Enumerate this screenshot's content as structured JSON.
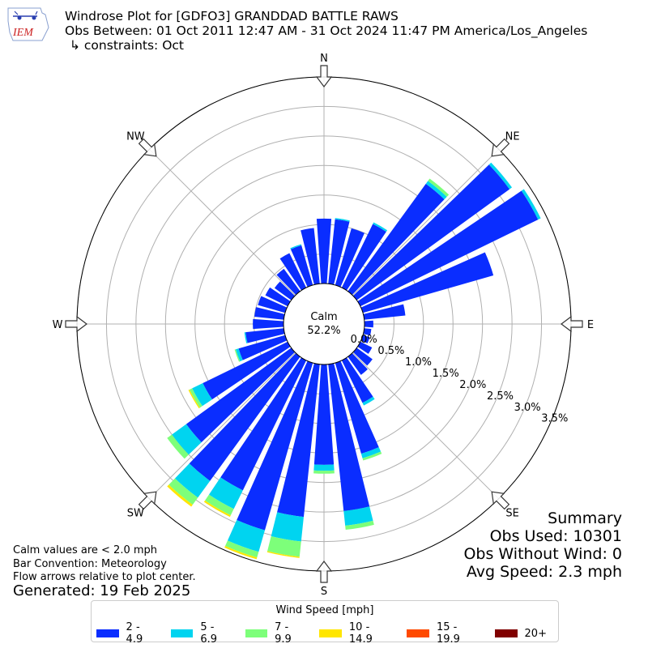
{
  "header": {
    "title": "Windrose Plot for [GDFO3] GRANDDAD BATTLE RAWS",
    "obs_between": "Obs Between: 01 Oct 2011 12:47 AM - 31 Oct 2024 11:47 PM America/Los_Angeles",
    "constraints": "↳ constraints: Oct",
    "logo_text": "IEM"
  },
  "calm": {
    "label": "Calm",
    "value": "52.2%"
  },
  "notes": {
    "calm_note": "Calm values are < 2.0 mph",
    "bar_convention": "Bar Convention: Meteorology",
    "flow_note": "Flow arrows relative to plot center.",
    "generated": "Generated: 19 Feb 2025"
  },
  "summary": {
    "title": "Summary",
    "obs_used": "Obs Used: 10301",
    "obs_without_wind": "Obs Without Wind: 0",
    "avg_speed": "Avg Speed: 2.3 mph"
  },
  "legend": {
    "title": "Wind Speed [mph]",
    "items": [
      {
        "label": "2 - 4.9",
        "color": "#0a2dff"
      },
      {
        "label": "5 - 6.9",
        "color": "#00d4f0"
      },
      {
        "label": "7 - 9.9",
        "color": "#7dff7a"
      },
      {
        "label": "10 - 14.9",
        "color": "#ffe600"
      },
      {
        "label": "15 - 19.9",
        "color": "#ff4a00"
      },
      {
        "label": "20+",
        "color": "#800000"
      }
    ]
  },
  "chart_data": {
    "type": "windrose",
    "direction_labels": [
      "N",
      "NE",
      "E",
      "SE",
      "S",
      "SW",
      "W",
      "NW"
    ],
    "radial_tick_labels": [
      "0.0%",
      "0.5%",
      "1.0%",
      "1.5%",
      "2.0%",
      "2.5%",
      "3.0%",
      "3.5%"
    ],
    "radial_ticks": [
      0,
      0.5,
      1.0,
      1.5,
      2.0,
      2.5,
      3.0,
      3.5
    ],
    "rmax": 3.5,
    "calm_percent": 52.2,
    "sector_width_deg": 10,
    "bins": [
      "2 - 4.9",
      "5 - 6.9",
      "7 - 9.9",
      "10 - 14.9",
      "15 - 19.9",
      "20+"
    ],
    "sectors": [
      {
        "dir": 0,
        "values": [
          1.1,
          0,
          0,
          0,
          0,
          0
        ]
      },
      {
        "dir": 10,
        "values": [
          1.1,
          0.02,
          0,
          0,
          0,
          0
        ]
      },
      {
        "dir": 20,
        "values": [
          1.0,
          0,
          0,
          0,
          0,
          0
        ]
      },
      {
        "dir": 30,
        "values": [
          1.2,
          0.03,
          0,
          0,
          0,
          0
        ]
      },
      {
        "dir": 40,
        "values": [
          2.25,
          0.06,
          0.05,
          0,
          0,
          0
        ]
      },
      {
        "dir": 50,
        "values": [
          3.2,
          0.05,
          0,
          0,
          0,
          0
        ]
      },
      {
        "dir": 60,
        "values": [
          3.35,
          0.05,
          0,
          0,
          0,
          0
        ]
      },
      {
        "dir": 70,
        "values": [
          2.3,
          0,
          0,
          0,
          0,
          0
        ]
      },
      {
        "dir": 80,
        "values": [
          0.7,
          0,
          0,
          0,
          0,
          0
        ]
      },
      {
        "dir": 90,
        "values": [
          0.15,
          0,
          0,
          0,
          0,
          0
        ]
      },
      {
        "dir": 100,
        "values": [
          0.12,
          0,
          0,
          0,
          0,
          0
        ]
      },
      {
        "dir": 110,
        "values": [
          0.12,
          0,
          0,
          0,
          0,
          0
        ]
      },
      {
        "dir": 120,
        "values": [
          0.22,
          0,
          0,
          0,
          0,
          0
        ]
      },
      {
        "dir": 130,
        "values": [
          0.33,
          0,
          0,
          0,
          0,
          0
        ]
      },
      {
        "dir": 140,
        "values": [
          0.38,
          0,
          0,
          0,
          0,
          0
        ]
      },
      {
        "dir": 150,
        "values": [
          0.8,
          0.05,
          0,
          0,
          0,
          0
        ]
      },
      {
        "dir": 160,
        "values": [
          1.6,
          0.08,
          0.04,
          0,
          0,
          0
        ]
      },
      {
        "dir": 170,
        "values": [
          2.5,
          0.25,
          0.07,
          0,
          0,
          0
        ]
      },
      {
        "dir": 180,
        "values": [
          1.7,
          0.1,
          0.05,
          0,
          0,
          0
        ]
      },
      {
        "dir": 190,
        "values": [
          2.6,
          0.42,
          0.26,
          0.02,
          0,
          0
        ]
      },
      {
        "dir": 200,
        "values": [
          2.95,
          0.38,
          0.1,
          0.03,
          0,
          0
        ]
      },
      {
        "dir": 210,
        "values": [
          2.45,
          0.35,
          0.12,
          0.03,
          0,
          0
        ]
      },
      {
        "dir": 220,
        "values": [
          2.6,
          0.35,
          0.15,
          0.04,
          0,
          0
        ]
      },
      {
        "dir": 230,
        "values": [
          2.2,
          0.3,
          0.1,
          0,
          0,
          0
        ]
      },
      {
        "dir": 240,
        "values": [
          1.6,
          0.2,
          0.05,
          0.02,
          0,
          0
        ]
      },
      {
        "dir": 250,
        "values": [
          0.82,
          0.05,
          0.02,
          0,
          0,
          0
        ]
      },
      {
        "dir": 260,
        "values": [
          0.65,
          0.02,
          0,
          0,
          0,
          0
        ]
      },
      {
        "dir": 270,
        "values": [
          0.52,
          0,
          0,
          0,
          0,
          0
        ]
      },
      {
        "dir": 280,
        "values": [
          0.5,
          0,
          0,
          0,
          0,
          0
        ]
      },
      {
        "dir": 290,
        "values": [
          0.48,
          0,
          0,
          0,
          0,
          0
        ]
      },
      {
        "dir": 300,
        "values": [
          0.42,
          0,
          0,
          0,
          0,
          0
        ]
      },
      {
        "dir": 310,
        "values": [
          0.35,
          0,
          0,
          0,
          0,
          0
        ]
      },
      {
        "dir": 320,
        "values": [
          0.47,
          0,
          0,
          0,
          0,
          0
        ]
      },
      {
        "dir": 330,
        "values": [
          0.65,
          0,
          0,
          0,
          0,
          0
        ]
      },
      {
        "dir": 340,
        "values": [
          0.7,
          0.02,
          0,
          0,
          0,
          0
        ]
      },
      {
        "dir": 350,
        "values": [
          0.95,
          0,
          0,
          0,
          0,
          0
        ]
      }
    ]
  }
}
